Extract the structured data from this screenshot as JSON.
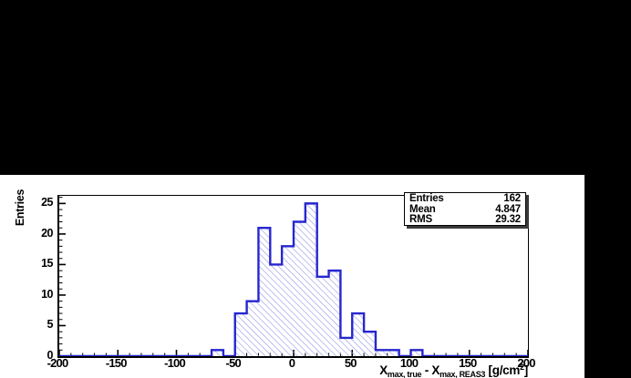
{
  "stats_box": {
    "position": "top-right",
    "rows": [
      {
        "label": "Entries",
        "value": "162"
      },
      {
        "label": "Mean",
        "value": "4.847"
      },
      {
        "label": "RMS",
        "value": "29.32"
      }
    ]
  },
  "axes": {
    "y_title": "Entries",
    "x_title": {
      "x1": "X",
      "sub1": "max, true",
      "sep": " - ",
      "x2": "X",
      "sub2": "max, REAS3",
      "unit_open": " [g/cm",
      "sup": "2",
      "unit_close": "]"
    },
    "xticks": [
      -200,
      -150,
      -100,
      -50,
      0,
      50,
      100,
      150,
      200
    ],
    "yticks": [
      0,
      5,
      10,
      15,
      20,
      25
    ]
  },
  "chart_data": {
    "type": "bar",
    "title": "",
    "xlabel": "X_max,true - X_max,REAS3 [g/cm^2]",
    "ylabel": "Entries",
    "xlim": [
      -200,
      200
    ],
    "ylim": [
      0,
      26.25
    ],
    "grid": false,
    "legend": "stats box top-right (Entries 162, Mean 4.847, RMS 29.32)",
    "bin_start": -200,
    "bin_width": 10,
    "counts": [
      0,
      0,
      0,
      0,
      0,
      0,
      0,
      0,
      0,
      0,
      0,
      0,
      0,
      1,
      0,
      7,
      9,
      21,
      15,
      18,
      22,
      25,
      13,
      14,
      3,
      7,
      4,
      1,
      1,
      0,
      1,
      0,
      0,
      0,
      0,
      0,
      0,
      0,
      0,
      0
    ],
    "x_minor_step": 10,
    "x_major_step": 50,
    "y_minor_step": 1,
    "y_major_step": 5,
    "stats": {
      "entries": 162,
      "mean": 4.847,
      "rms": 29.32
    },
    "colors": {
      "line": "#2626cf",
      "hatch": "#979ae8",
      "axis": "#000000",
      "canvas": "#ffffff",
      "background": "#000000"
    }
  }
}
